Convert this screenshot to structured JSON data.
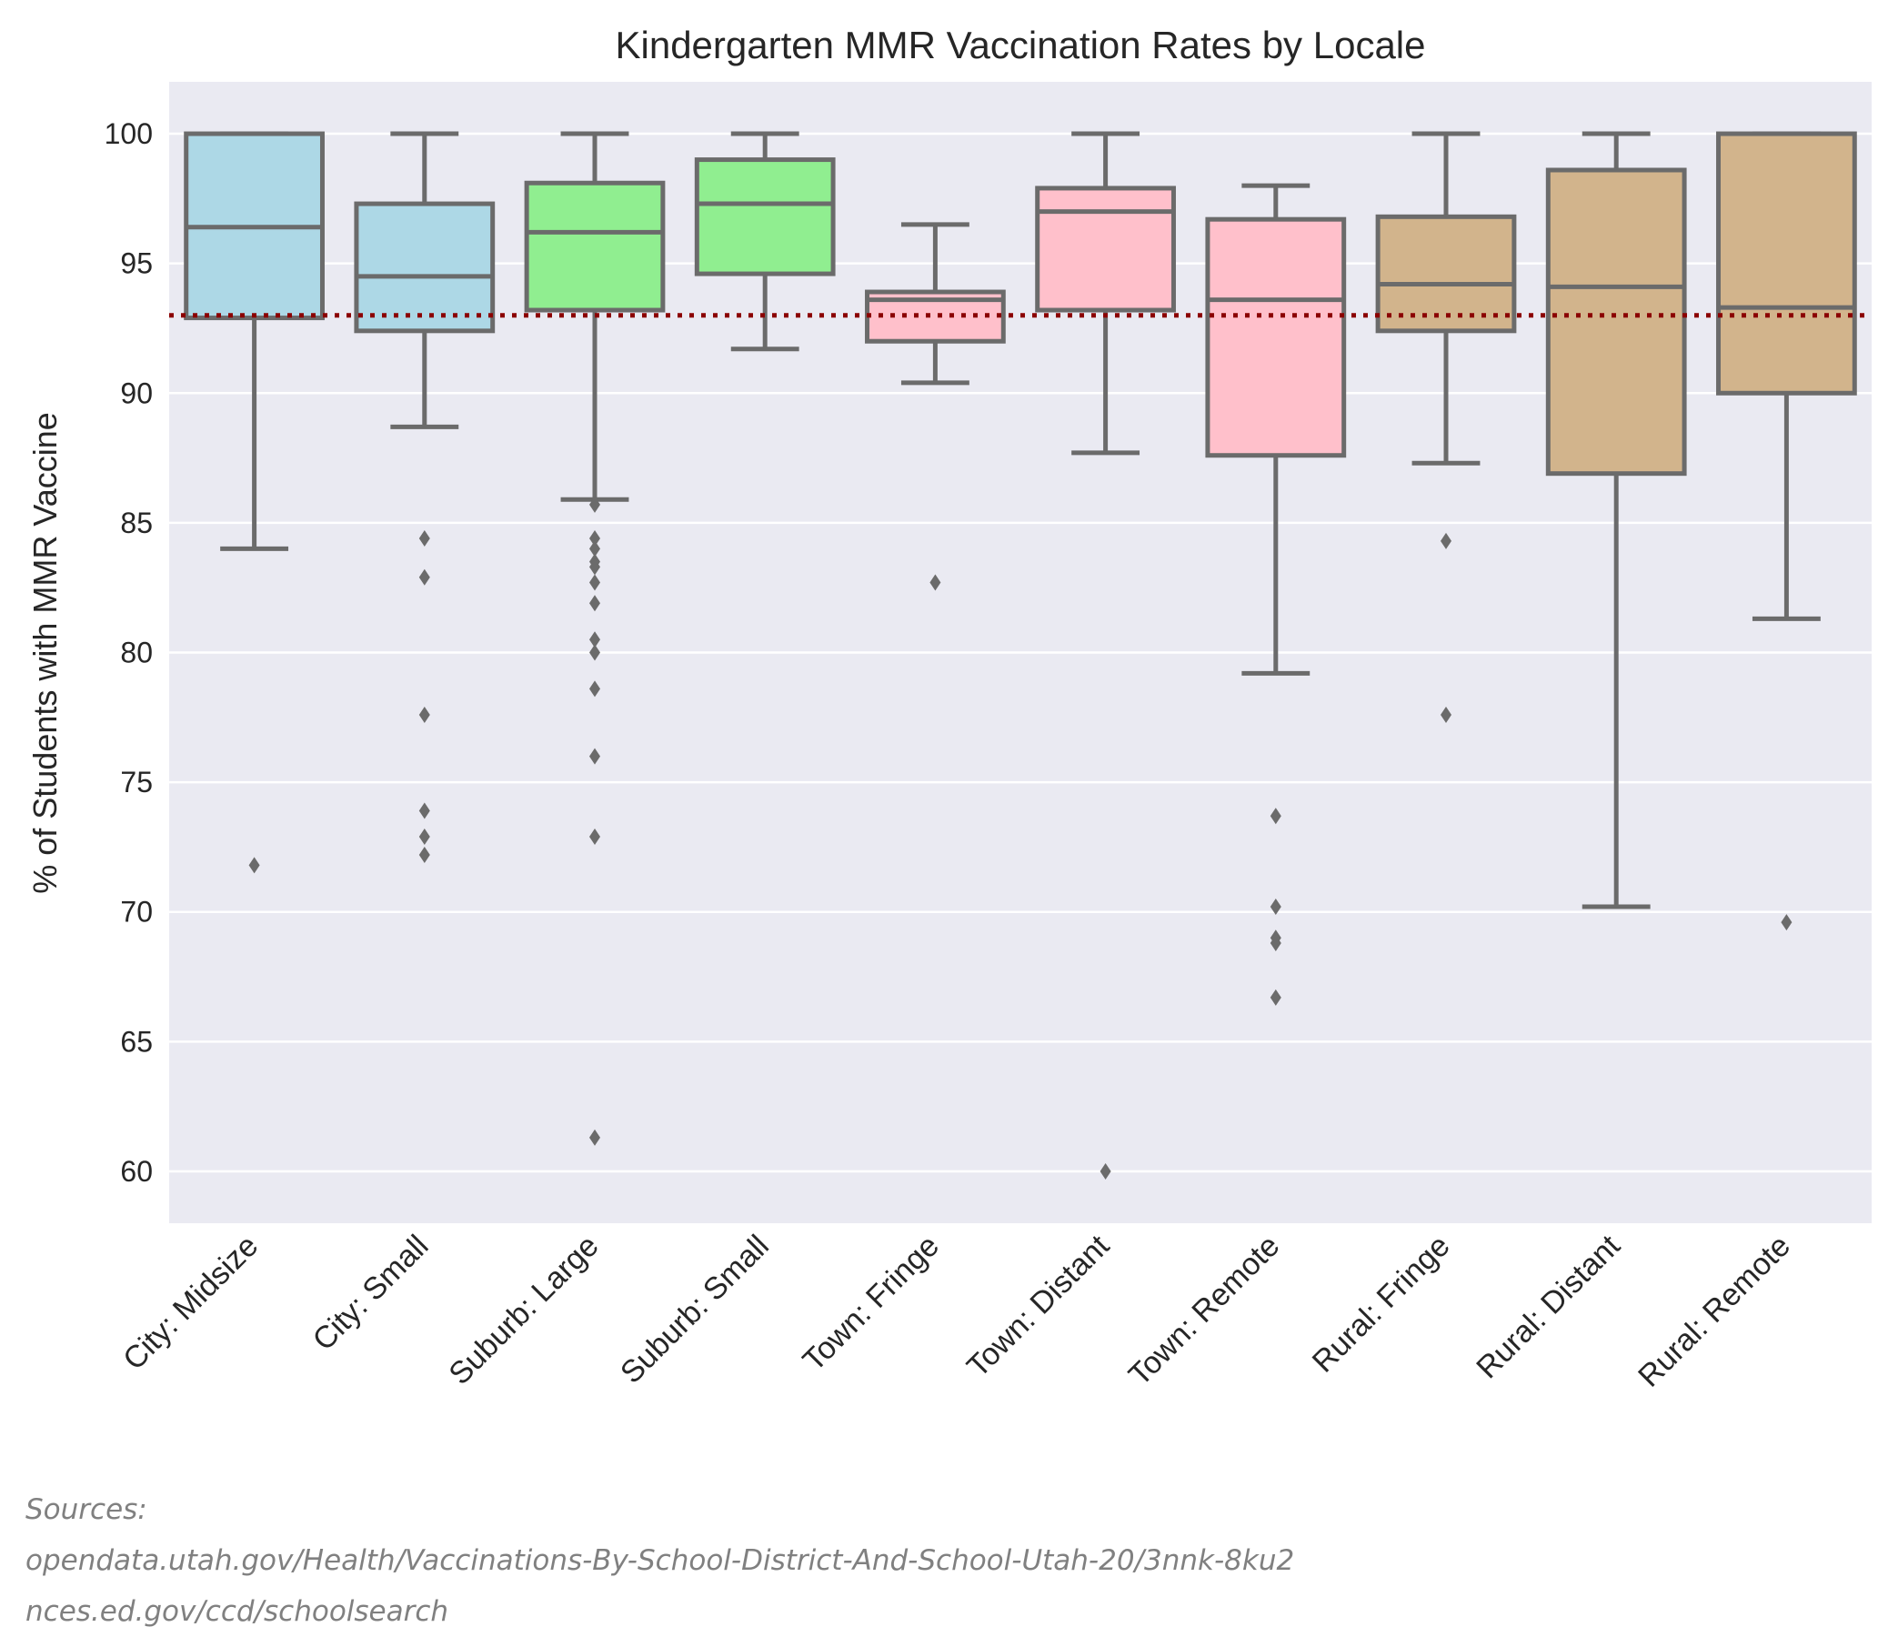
{
  "chart_data": {
    "type": "box",
    "title": "Kindergarten MMR Vaccination Rates by Locale",
    "xlabel": "",
    "ylabel": "% of Students with MMR Vaccine",
    "ylim": [
      58,
      102
    ],
    "yticks": [
      60,
      65,
      70,
      75,
      80,
      85,
      90,
      95,
      100
    ],
    "grid": true,
    "reference_line": {
      "y": 93,
      "style": "dotted",
      "color": "#8b0000"
    },
    "categories": [
      "City: Midsize",
      "City: Small",
      "Suburb: Large",
      "Suburb: Small",
      "Town: Fringe",
      "Town: Distant",
      "Town: Remote",
      "Rural: Fringe",
      "Rural: Distant",
      "Rural: Remote"
    ],
    "boxes": [
      {
        "category": "City: Midsize",
        "whislo": 84.0,
        "q1": 92.9,
        "med": 96.4,
        "q3": 100.0,
        "whishi": 100.0,
        "fliers": [
          71.8
        ],
        "color": "#add8e6"
      },
      {
        "category": "City: Small",
        "whislo": 88.7,
        "q1": 92.4,
        "med": 94.5,
        "q3": 97.3,
        "whishi": 100.0,
        "fliers": [
          84.4,
          82.9,
          77.6,
          73.9,
          72.9,
          72.2
        ],
        "color": "#add8e6"
      },
      {
        "category": "Suburb: Large",
        "whislo": 85.9,
        "q1": 93.2,
        "med": 96.2,
        "q3": 98.1,
        "whishi": 100.0,
        "fliers": [
          85.7,
          84.4,
          84.0,
          83.5,
          83.3,
          82.7,
          81.9,
          80.5,
          80.0,
          78.6,
          76.0,
          72.9,
          61.3
        ],
        "color": "#90ee90"
      },
      {
        "category": "Suburb: Small",
        "whislo": 91.7,
        "q1": 94.6,
        "med": 97.3,
        "q3": 99.0,
        "whishi": 100.0,
        "fliers": [],
        "color": "#90ee90"
      },
      {
        "category": "Town: Fringe",
        "whislo": 90.4,
        "q1": 92.0,
        "med": 93.6,
        "q3": 93.9,
        "whishi": 96.5,
        "fliers": [
          82.7
        ],
        "color": "#ffc0cb"
      },
      {
        "category": "Town: Distant",
        "whislo": 87.7,
        "q1": 93.2,
        "med": 97.0,
        "q3": 97.9,
        "whishi": 100.0,
        "fliers": [
          60.0
        ],
        "color": "#ffc0cb"
      },
      {
        "category": "Town: Remote",
        "whislo": 79.2,
        "q1": 87.6,
        "med": 93.6,
        "q3": 96.7,
        "whishi": 98.0,
        "fliers": [
          73.7,
          70.2,
          69.0,
          68.8,
          66.7
        ],
        "color": "#ffc0cb"
      },
      {
        "category": "Rural: Fringe",
        "whislo": 87.3,
        "q1": 92.4,
        "med": 94.2,
        "q3": 96.8,
        "whishi": 100.0,
        "fliers": [
          84.3,
          77.6
        ],
        "color": "#d2b48c"
      },
      {
        "category": "Rural: Distant",
        "whislo": 70.2,
        "q1": 86.9,
        "med": 94.1,
        "q3": 98.6,
        "whishi": 100.0,
        "fliers": [],
        "color": "#d2b48c"
      },
      {
        "category": "Rural: Remote",
        "whislo": 81.3,
        "q1": 90.0,
        "med": 93.3,
        "q3": 100.0,
        "whishi": 100.0,
        "fliers": [
          69.6
        ],
        "color": "#d2b48c"
      }
    ]
  },
  "sources": {
    "heading": "Sources:",
    "line1": "opendata.utah.gov/Health/Vaccinations-By-School-District-And-School-Utah-20/3nnk-8ku2",
    "line2": "nces.ed.gov/ccd/schoolsearch"
  },
  "colors": {
    "plot_bg": "#eaeaf2",
    "grid": "#ffffff",
    "box_edge": "#6b6b6b",
    "reference_line": "#8b0000"
  }
}
